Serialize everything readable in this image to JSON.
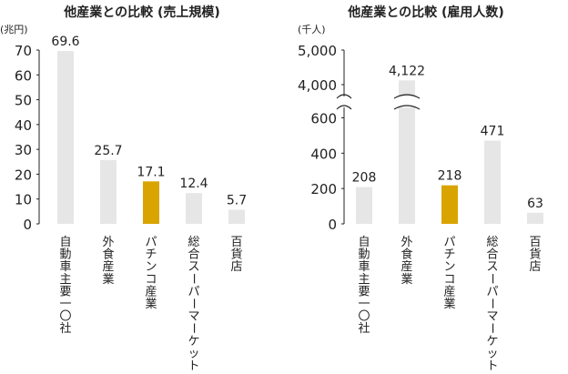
{
  "colors": {
    "bar": "#e6e6e6",
    "highlight": "#d9a400",
    "text": "#222222",
    "axis": "#222222"
  },
  "chart_data": [
    {
      "type": "bar",
      "title": "他産業との比較 (売上規模)",
      "unit": "(兆円)",
      "categories": [
        "自動車主要一〇社",
        "外食産業",
        "パチンコ産業",
        "総合スーパーマーケット",
        "百貨店"
      ],
      "values": [
        69.6,
        25.7,
        17.1,
        12.4,
        5.7
      ],
      "value_labels": [
        "69.6",
        "25.7",
        "17.1",
        "12.4",
        "5.7"
      ],
      "highlight_index": 2,
      "yticks": [
        0,
        10,
        20,
        30,
        40,
        50,
        60,
        70
      ],
      "ylim": [
        0,
        70
      ],
      "grid": false
    },
    {
      "type": "bar",
      "title": "他産業との比較 (雇用人数)",
      "unit": "(千人)",
      "categories": [
        "自動車主要一〇社",
        "外食産業",
        "パチンコ産業",
        "総合スーパーマーケット",
        "百貨店"
      ],
      "values": [
        208,
        4122,
        218,
        471,
        63
      ],
      "value_labels": [
        "208",
        "4,122",
        "218",
        "471",
        "63"
      ],
      "highlight_index": 2,
      "yticks": [
        0,
        200,
        400,
        600,
        4000,
        5000
      ],
      "ytick_labels": [
        "0",
        "200",
        "400",
        "600",
        "4,000",
        "5,000"
      ],
      "axis_break": [
        600,
        4000
      ],
      "ylim": [
        0,
        5000
      ],
      "grid": false
    }
  ]
}
